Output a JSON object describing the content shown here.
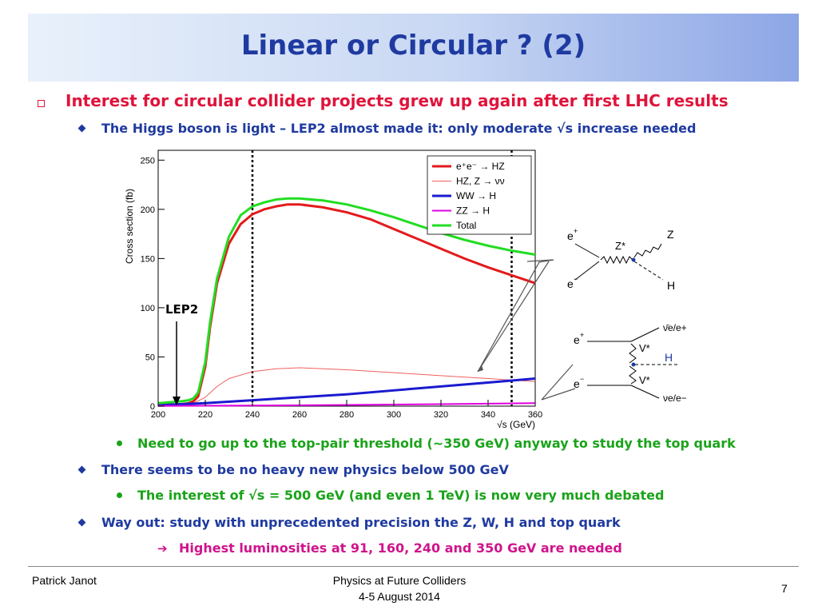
{
  "title": "Linear or Circular ? (2)",
  "bullets": {
    "b1": "Interest for circular collider projects grew up again after first LHC results",
    "b2": "The Higgs boson is light – LEP2 almost made it: only moderate √s increase needed",
    "b3": "Need to go up to the top-pair threshold (~350 GeV) anyway to study the top quark",
    "b4": "There seems to be no heavy new physics below 500 GeV",
    "b5": "The interest of √s = 500 GeV (and even 1 TeV) is now very much debated",
    "b6": "Way out: study with unprecedented precision the Z, W, H and top quark",
    "b7": "Highest luminosities at 91, 160, 240 and 350 GeV are needed"
  },
  "icons": {
    "level1": "square-bullet-icon",
    "level2": "diamond-bullet-icon",
    "level3": "dot-bullet-icon",
    "level4": "right-arrow-icon"
  },
  "colors": {
    "title": "#1f3aa0",
    "level1": "#e0133b",
    "level2": "#1f3aa0",
    "level3": "#1aa31a",
    "level4": "#d0138b"
  },
  "footer": {
    "author": "Patrick Janot",
    "event": "Physics at Future Colliders",
    "date": "4-5 August 2014",
    "page": "7"
  },
  "chart_data": {
    "type": "line",
    "xlabel": "√s (GeV)",
    "ylabel": "Cross section (fb)",
    "xlim": [
      200,
      360
    ],
    "ylim": [
      0,
      260
    ],
    "xticks": [
      200,
      220,
      240,
      260,
      280,
      300,
      320,
      340,
      360
    ],
    "yticks": [
      0,
      50,
      100,
      150,
      200,
      250
    ],
    "annotation": "LEP2",
    "legend_position": "top-right",
    "series": [
      {
        "name": "e⁺e⁻ → HZ",
        "color": "#e41a1c",
        "width": 3,
        "x": [
          200,
          205,
          210,
          213,
          215,
          217,
          220,
          222,
          225,
          230,
          235,
          240,
          245,
          250,
          255,
          260,
          270,
          280,
          290,
          300,
          310,
          320,
          330,
          340,
          350,
          360
        ],
        "y": [
          1,
          1.5,
          2,
          3,
          5,
          10,
          40,
          80,
          125,
          165,
          185,
          195,
          200,
          203,
          205,
          205,
          202,
          197,
          190,
          180,
          170,
          160,
          150,
          141,
          133,
          125
        ]
      },
      {
        "name": "HZ, Z → νν",
        "color": "#f06060",
        "width": 1,
        "x": [
          200,
          205,
          210,
          215,
          220,
          225,
          230,
          240,
          250,
          260,
          280,
          300,
          320,
          340,
          360
        ],
        "y": [
          0.5,
          0.8,
          1.5,
          3,
          9,
          20,
          28,
          35,
          38,
          39,
          37,
          34,
          31,
          28,
          25
        ]
      },
      {
        "name": "WW → H",
        "color": "#1a1ad0",
        "width": 3,
        "x": [
          200,
          220,
          240,
          260,
          280,
          300,
          320,
          340,
          360
        ],
        "y": [
          1,
          3,
          6,
          9,
          12,
          16,
          20,
          24,
          28
        ]
      },
      {
        "name": "ZZ → H",
        "color": "#e000e0",
        "width": 2,
        "x": [
          200,
          240,
          280,
          320,
          360
        ],
        "y": [
          0.2,
          0.6,
          1.2,
          2,
          3
        ]
      },
      {
        "name": "Total",
        "color": "#22dd22",
        "width": 3,
        "x": [
          200,
          205,
          210,
          213,
          215,
          217,
          220,
          222,
          225,
          230,
          235,
          240,
          245,
          250,
          255,
          260,
          270,
          280,
          290,
          300,
          310,
          320,
          330,
          340,
          350,
          360
        ],
        "y": [
          3,
          4,
          5,
          6,
          8,
          14,
          45,
          85,
          130,
          172,
          194,
          203,
          207,
          210,
          211,
          211,
          209,
          205,
          199,
          192,
          184,
          176,
          169,
          163,
          158,
          154
        ]
      }
    ],
    "vlines": [
      240,
      350
    ]
  }
}
